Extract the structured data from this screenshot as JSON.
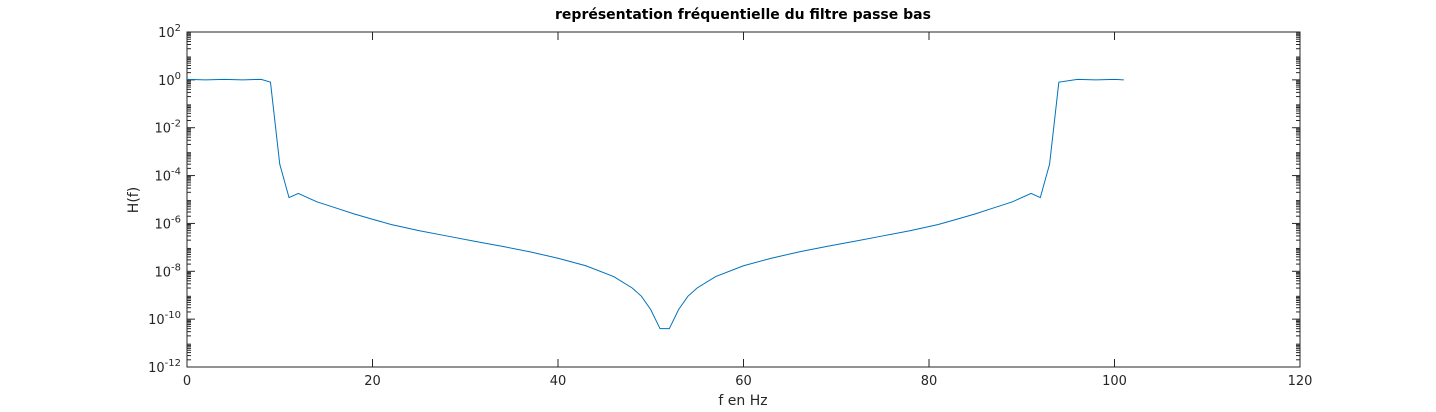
{
  "chart_data": {
    "type": "line",
    "title": "représentation fréquentielle du filtre passe bas",
    "x_label": "f en Hz",
    "y_label": "H(f)",
    "y_scale": "log",
    "xlim": [
      0,
      120
    ],
    "xticks": [
      0,
      20,
      40,
      60,
      80,
      100,
      120
    ],
    "ylim": [
      1e-12,
      100
    ],
    "yticks": [
      {
        "value": 1e-12,
        "label": "10^-12"
      },
      {
        "value": 1e-10,
        "label": "10^-10"
      },
      {
        "value": 1e-08,
        "label": "10^-8"
      },
      {
        "value": 1e-06,
        "label": "10^-6"
      },
      {
        "value": 0.0001,
        "label": "10^-4"
      },
      {
        "value": 0.01,
        "label": "10^-2"
      },
      {
        "value": 1,
        "label": "10^0"
      },
      {
        "value": 100,
        "label": "10^2"
      }
    ],
    "x": [
      0,
      2,
      4,
      6,
      8,
      9,
      10,
      11,
      12,
      14,
      16,
      18,
      20,
      22,
      25,
      28,
      31,
      34,
      37,
      40,
      43,
      46,
      48,
      49,
      50,
      51,
      52,
      53,
      54,
      55,
      57,
      60,
      63,
      66,
      69,
      72,
      75,
      78,
      81,
      83,
      85,
      87,
      89,
      91,
      92,
      93,
      94,
      96,
      98,
      100,
      101
    ],
    "series": [
      {
        "color": "#0072bd",
        "values": [
          1.05,
          1.0,
          1.05,
          1.0,
          1.05,
          0.8,
          0.0003,
          1.2e-05,
          1.8e-05,
          8e-06,
          4.5e-06,
          2.5e-06,
          1.5e-06,
          9e-07,
          5e-07,
          3e-07,
          1.8e-07,
          1.1e-07,
          6.5e-08,
          3.5e-08,
          1.7e-08,
          6e-09,
          2e-09,
          9e-10,
          2.5e-10,
          4e-11,
          4e-11,
          2.5e-10,
          9e-10,
          2e-09,
          6e-09,
          1.7e-08,
          3.5e-08,
          6.5e-08,
          1.1e-07,
          1.8e-07,
          3e-07,
          5e-07,
          9e-07,
          1.5e-06,
          2.5e-06,
          4.5e-06,
          8e-06,
          1.8e-05,
          1.2e-05,
          0.0003,
          0.8,
          1.05,
          1.0,
          1.05,
          1.0
        ]
      }
    ]
  }
}
